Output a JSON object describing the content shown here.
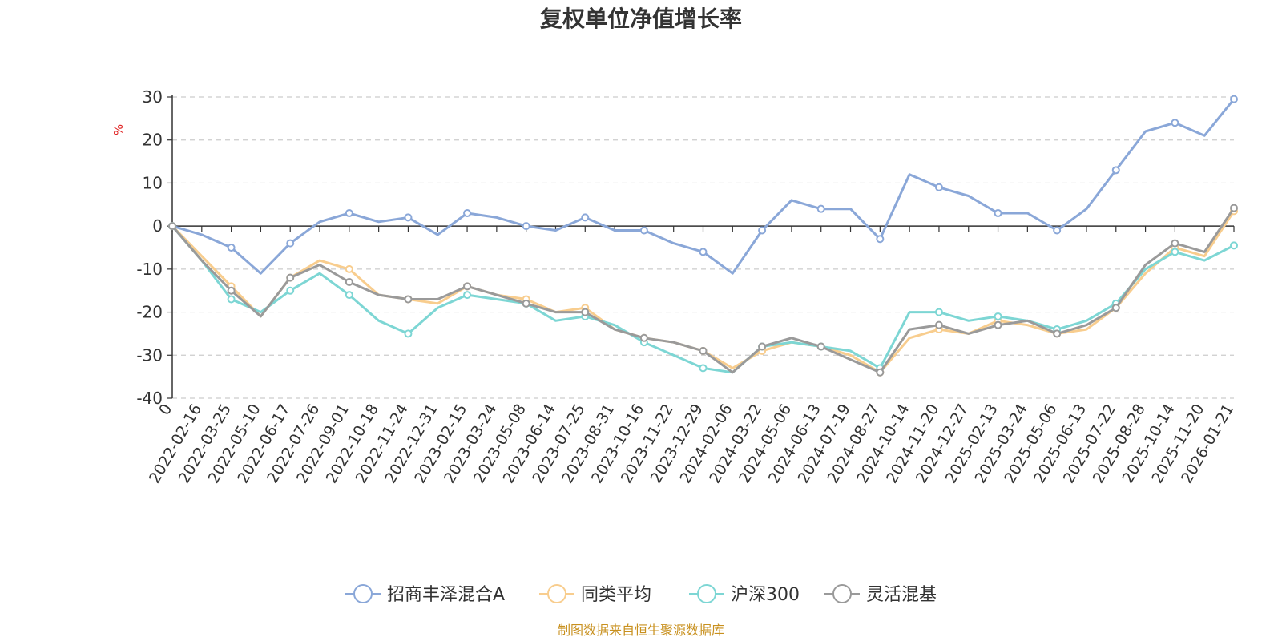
{
  "chart_data": {
    "type": "line",
    "title": "复权单位净值增长率",
    "ylabel": "%",
    "ylim": [
      -40,
      30
    ],
    "yticks": [
      30,
      20,
      10,
      0,
      -10,
      -20,
      -30,
      -40
    ],
    "grid": true,
    "legend_position": "bottom",
    "source_note": "制图数据来自恒生聚源数据库",
    "x_tick_labels": [
      "0",
      "2022-02-16",
      "2022-03-25",
      "2022-05-10",
      "2022-06-17",
      "2022-07-26",
      "2022-09-01",
      "2022-10-18",
      "2022-11-24",
      "2022-12-31",
      "2023-02-15",
      "2023-03-24",
      "2023-05-08",
      "2023-06-14",
      "2023-07-25",
      "2023-08-31",
      "2023-10-16",
      "2023-11-22",
      "2023-12-29",
      "2024-02-06",
      "2024-03-22",
      "2024-05-06",
      "2024-06-13",
      "2024-07-19",
      "2024-08-27",
      "2024-10-14",
      "2024-11-20",
      "2024-12-27",
      "2025-02-13",
      "2025-03-24",
      "2025-05-06",
      "2025-06-13",
      "2025-07-22",
      "2025-08-28",
      "2025-10-14",
      "2025-11-20",
      "2026-01-21"
    ],
    "series": [
      {
        "name": "招商丰泽混合A",
        "color": "#8aa7d8",
        "values": [
          0,
          -2,
          -5,
          -11,
          -4,
          1,
          3,
          1,
          2,
          -2,
          3,
          2,
          0,
          -1,
          2,
          -1,
          -1,
          -4,
          -6,
          -11,
          -1,
          6,
          4,
          4,
          -3,
          12,
          9,
          7,
          3,
          3,
          -1,
          4,
          13,
          22,
          24,
          21,
          29.5
        ]
      },
      {
        "name": "同类平均",
        "color": "#f8cd8e",
        "values": [
          0,
          -7,
          -14,
          -21,
          -12,
          -8,
          -10,
          -16,
          -17,
          -18,
          -14,
          -16,
          -17,
          -20,
          -19,
          -24,
          -26,
          -27,
          -29,
          -33,
          -29,
          -27,
          -28,
          -30,
          -34,
          -26,
          -24,
          -25,
          -22,
          -23,
          -25,
          -24,
          -19,
          -11,
          -5,
          -7,
          3.5
        ]
      },
      {
        "name": "沪深300",
        "color": "#7dd6d4",
        "values": [
          0,
          -8,
          -17,
          -20,
          -15,
          -11,
          -16,
          -22,
          -25,
          -19,
          -16,
          -17,
          -18,
          -22,
          -21,
          -23,
          -27,
          -30,
          -33,
          -34,
          -28,
          -27,
          -28,
          -29,
          -33,
          -20,
          -20,
          -22,
          -21,
          -22,
          -24,
          -22,
          -18,
          -10,
          -6,
          -8,
          -4.5
        ]
      },
      {
        "name": "灵活混基",
        "color": "#9a9a9a",
        "values": [
          0,
          -8,
          -15,
          -21,
          -12,
          -9,
          -13,
          -16,
          -17,
          -17,
          -14,
          -16,
          -18,
          -20,
          -20,
          -24,
          -26,
          -27,
          -29,
          -34,
          -28,
          -26,
          -28,
          -31,
          -34,
          -24,
          -23,
          -25,
          -23,
          -22,
          -25,
          -23,
          -19,
          -9,
          -4,
          -6,
          4.2
        ]
      }
    ]
  }
}
